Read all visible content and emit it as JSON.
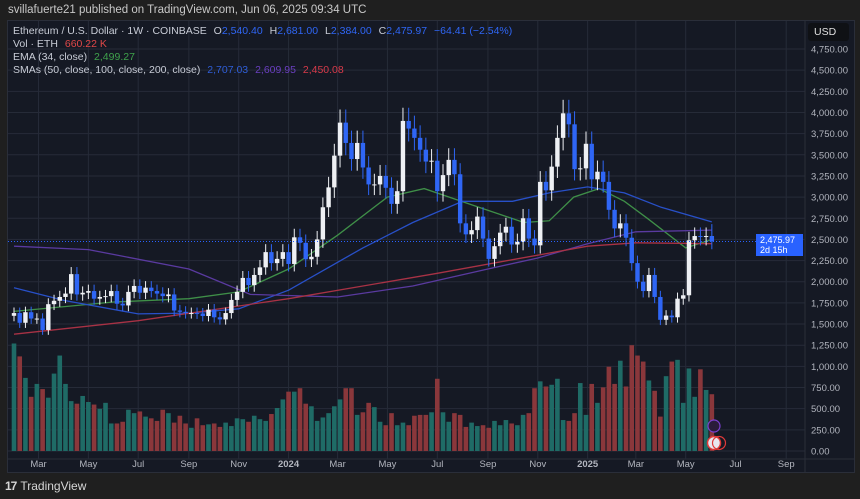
{
  "header": {
    "published": "svillafuerte21 published on TradingView.com, Jun 06, 2025 09:34 UTC"
  },
  "legend": {
    "symbol": "Ethereum / U.S. Dollar · 1W · COINBASE",
    "o_label": "O",
    "o": "2,540.40",
    "h_label": "H",
    "h": "2,681.00",
    "l_label": "L",
    "l": "2,384.00",
    "c_label": "C",
    "c": "2,475.97",
    "change": "−64.41 (−2.54%)",
    "vol_label": "Vol · ETH",
    "vol": "660.22 K",
    "ema_label": "EMA (34, close)",
    "ema": "2,499.27",
    "sma_label": "SMAs (50, close, 100, close, 200, close)",
    "sma50": "2,707.03",
    "sma100": "2,609.95",
    "sma200": "2,450.08"
  },
  "price_axis": {
    "currency": "USD",
    "current_price": "2,475.97",
    "countdown": "2d 15h",
    "ticks": [
      "0.00",
      "250.00",
      "500.00",
      "750.00",
      "1,000.00",
      "1,250.00",
      "1,500.00",
      "1,750.00",
      "2,000.00",
      "2,250.00",
      "2,500.00",
      "2,750.00",
      "3,000.00",
      "3,250.00",
      "3,500.00",
      "3,750.00",
      "4,000.00",
      "4,250.00",
      "4,500.00",
      "4,750.00"
    ]
  },
  "footer": {
    "brand": "TradingView"
  },
  "colors": {
    "up": "#eef0f4",
    "down": "#2f66f5",
    "vol_up": "#1f6b66",
    "vol_down": "#8a373b",
    "ema": "#3f8f48",
    "sma50": "#2850c8",
    "sma100": "#5a3aa0",
    "sma200": "#a83245",
    "bg": "#151924",
    "grid": "#262b38"
  },
  "chart_data": {
    "type": "candlestick",
    "interval": "1W",
    "first_week": "2023-01-30",
    "ylim": [
      0,
      4750
    ],
    "grid": true,
    "x_ticks": [
      {
        "label": "Mar",
        "date": "2023-03-01"
      },
      {
        "label": "May",
        "date": "2023-05-01"
      },
      {
        "label": "Jul",
        "date": "2023-07-01"
      },
      {
        "label": "Sep",
        "date": "2023-09-01"
      },
      {
        "label": "Nov",
        "date": "2023-11-01"
      },
      {
        "label": "2024",
        "date": "2024-01-01",
        "bold": true
      },
      {
        "label": "Mar",
        "date": "2024-03-01"
      },
      {
        "label": "May",
        "date": "2024-05-01"
      },
      {
        "label": "Jul",
        "date": "2024-07-01"
      },
      {
        "label": "Sep",
        "date": "2024-09-01"
      },
      {
        "label": "Nov",
        "date": "2024-11-01"
      },
      {
        "label": "2025",
        "date": "2025-01-01",
        "bold": true
      },
      {
        "label": "Mar",
        "date": "2025-03-01"
      },
      {
        "label": "May",
        "date": "2025-05-01"
      },
      {
        "label": "Jul",
        "date": "2025-07-01"
      },
      {
        "label": "Sep",
        "date": "2025-09-01"
      }
    ],
    "close": [
      1630,
      1515,
      1640,
      1565,
      1565,
      1430,
      1735,
      1775,
      1820,
      1860,
      2090,
      1850,
      1870,
      1890,
      1800,
      1820,
      1830,
      1890,
      1740,
      1720,
      1880,
      1950,
      1870,
      1930,
      1890,
      1860,
      1830,
      1850,
      1660,
      1645,
      1630,
      1630,
      1625,
      1595,
      1670,
      1580,
      1555,
      1630,
      1785,
      1880,
      2045,
      1960,
      2080,
      2170,
      2350,
      2220,
      2270,
      2350,
      2210,
      2525,
      2460,
      2265,
      2295,
      2500,
      2880,
      3115,
      3490,
      3880,
      3640,
      3450,
      3640,
      3350,
      3150,
      3150,
      3250,
      3110,
      2920,
      3070,
      3900,
      3810,
      3700,
      3560,
      3420,
      3430,
      3070,
      3260,
      3440,
      3270,
      2690,
      2560,
      2610,
      2770,
      2510,
      2270,
      2420,
      2580,
      2650,
      2440,
      2470,
      2750,
      2510,
      2430,
      3180,
      3080,
      3360,
      3700,
      3990,
      3860,
      3330,
      3340,
      3630,
      3210,
      3300,
      3180,
      2850,
      2630,
      2690,
      2520,
      2220,
      2000,
      1890,
      2080,
      1820,
      1550,
      1600,
      1580,
      1800,
      1840,
      2490,
      2540,
      2530,
      2540,
      2475.97
    ],
    "last_candle": {
      "open": 2540.4,
      "high": 2681.0,
      "low": 2384.0,
      "close": 2475.97
    },
    "volume_k": [
      1250,
      1100,
      850,
      630,
      780,
      720,
      620,
      900,
      1110,
      780,
      580,
      550,
      640,
      570,
      540,
      490,
      560,
      320,
      320,
      340,
      480,
      440,
      460,
      400,
      380,
      350,
      480,
      440,
      330,
      410,
      320,
      270,
      380,
      300,
      310,
      320,
      280,
      330,
      290,
      380,
      370,
      340,
      410,
      370,
      350,
      430,
      500,
      600,
      690,
      690,
      730,
      550,
      520,
      350,
      390,
      440,
      520,
      600,
      730,
      730,
      420,
      450,
      560,
      510,
      340,
      300,
      440,
      300,
      330,
      300,
      410,
      420,
      420,
      450,
      840,
      450,
      340,
      440,
      420,
      280,
      330,
      290,
      300,
      270,
      350,
      300,
      360,
      320,
      300,
      420,
      440,
      730,
      810,
      750,
      770,
      840,
      360,
      350,
      440,
      790,
      420,
      780,
      560,
      740,
      980,
      780,
      1050,
      750,
      1230,
      1110,
      1040,
      820,
      700,
      400,
      870,
      1040,
      1060,
      560,
      960,
      630,
      950,
      710,
      660.22
    ],
    "series": [
      {
        "name": "EMA (34, close)",
        "color_key": "ema",
        "points": [
          [
            "2023-01-30",
            1650
          ],
          [
            "2023-06-01",
            1760
          ],
          [
            "2023-09-01",
            1800
          ],
          [
            "2023-11-01",
            1880
          ],
          [
            "2024-01-01",
            2150
          ],
          [
            "2024-03-01",
            2550
          ],
          [
            "2024-05-01",
            3000
          ],
          [
            "2024-06-15",
            3100
          ],
          [
            "2024-08-15",
            2900
          ],
          [
            "2024-10-15",
            2700
          ],
          [
            "2024-11-15",
            2720
          ],
          [
            "2024-12-15",
            3000
          ],
          [
            "2025-01-15",
            3100
          ],
          [
            "2025-02-15",
            2950
          ],
          [
            "2025-03-15",
            2750
          ],
          [
            "2025-05-01",
            2400
          ],
          [
            "2025-06-02",
            2499
          ]
        ]
      },
      {
        "name": "SMA 50",
        "color_key": "sma50",
        "points": [
          [
            "2023-01-30",
            1930
          ],
          [
            "2023-04-01",
            1780
          ],
          [
            "2023-07-01",
            1620
          ],
          [
            "2023-09-01",
            1630
          ],
          [
            "2023-11-01",
            1680
          ],
          [
            "2024-01-01",
            1900
          ],
          [
            "2024-04-01",
            2400
          ],
          [
            "2024-06-01",
            2700
          ],
          [
            "2024-08-01",
            2950
          ],
          [
            "2024-10-01",
            2950
          ],
          [
            "2024-11-15",
            3050
          ],
          [
            "2025-01-01",
            3120
          ],
          [
            "2025-02-15",
            3050
          ],
          [
            "2025-04-01",
            2880
          ],
          [
            "2025-06-02",
            2707
          ]
        ]
      },
      {
        "name": "SMA 100",
        "color_key": "sma100",
        "points": [
          [
            "2023-01-30",
            2420
          ],
          [
            "2023-05-01",
            2380
          ],
          [
            "2023-09-01",
            2150
          ],
          [
            "2023-11-15",
            1850
          ],
          [
            "2024-03-01",
            1820
          ],
          [
            "2024-06-01",
            1950
          ],
          [
            "2024-09-01",
            2150
          ],
          [
            "2024-11-01",
            2280
          ],
          [
            "2025-01-01",
            2450
          ],
          [
            "2025-03-01",
            2590
          ],
          [
            "2025-06-02",
            2610
          ]
        ]
      },
      {
        "name": "SMA 200",
        "color_key": "sma200",
        "points": [
          [
            "2023-01-30",
            1380
          ],
          [
            "2023-07-01",
            1540
          ],
          [
            "2024-01-01",
            1800
          ],
          [
            "2024-07-01",
            2100
          ],
          [
            "2024-10-01",
            2260
          ],
          [
            "2025-01-01",
            2420
          ],
          [
            "2025-03-01",
            2460
          ],
          [
            "2025-06-02",
            2450
          ]
        ]
      }
    ]
  }
}
